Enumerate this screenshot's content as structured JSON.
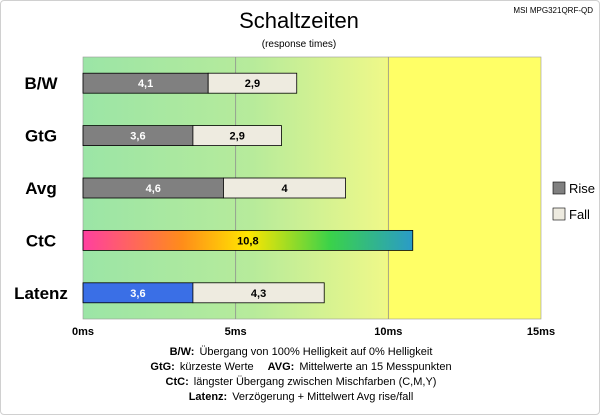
{
  "chart_data": {
    "type": "bar",
    "title": "Schaltzeiten",
    "subtitle": "(response times)",
    "model": "MSI MPG321QRF-QD",
    "categories": [
      "B/W",
      "GtG",
      "Avg",
      "CtC",
      "Latenz"
    ],
    "series": [
      {
        "name": "Rise",
        "values": [
          4.1,
          3.6,
          4.6,
          10.8,
          3.6
        ]
      },
      {
        "name": "Fall",
        "values": [
          2.9,
          2.9,
          4,
          null,
          4.3
        ]
      }
    ],
    "value_labels": {
      "Rise": [
        "4,1",
        "3,6",
        "4,6",
        "10,8",
        "3,6"
      ],
      "Fall": [
        "2,9",
        "2,9",
        "4",
        "",
        "4,3"
      ]
    },
    "x_ticks": [
      0,
      5,
      10,
      15
    ],
    "x_tick_labels": [
      "0ms",
      "5ms",
      "10ms",
      "15ms"
    ],
    "xlim": [
      0,
      15
    ],
    "legend_position": "right",
    "stacked": true,
    "colors": {
      "rise": "#808080",
      "fall": "#eeebe0",
      "latency_rise": "#3a6fe6",
      "ctc_gradient": [
        "#ff3fa0",
        "#ff8c1a",
        "#ffe600",
        "#3ad24a",
        "#2a9bc8"
      ],
      "bg_green": "#9be5a6",
      "bg_yellow": "#ffff66"
    }
  },
  "notes": [
    {
      "label": "B/W:",
      "text": "Übergang von 100% Helligkeit auf 0% Helligkeit"
    },
    {
      "label": "GtG:",
      "text": "kürzeste  Werte",
      "label2": "AVG:",
      "text2": "Mittelwerte  an 15 Messpunkten"
    },
    {
      "label": "CtC:",
      "text": "längster Übergang  zwischen Mischfarben (C,M,Y)"
    },
    {
      "label": "Latenz:",
      "text": "Verzögerung  + Mittelwert  Avg rise/fall"
    }
  ]
}
